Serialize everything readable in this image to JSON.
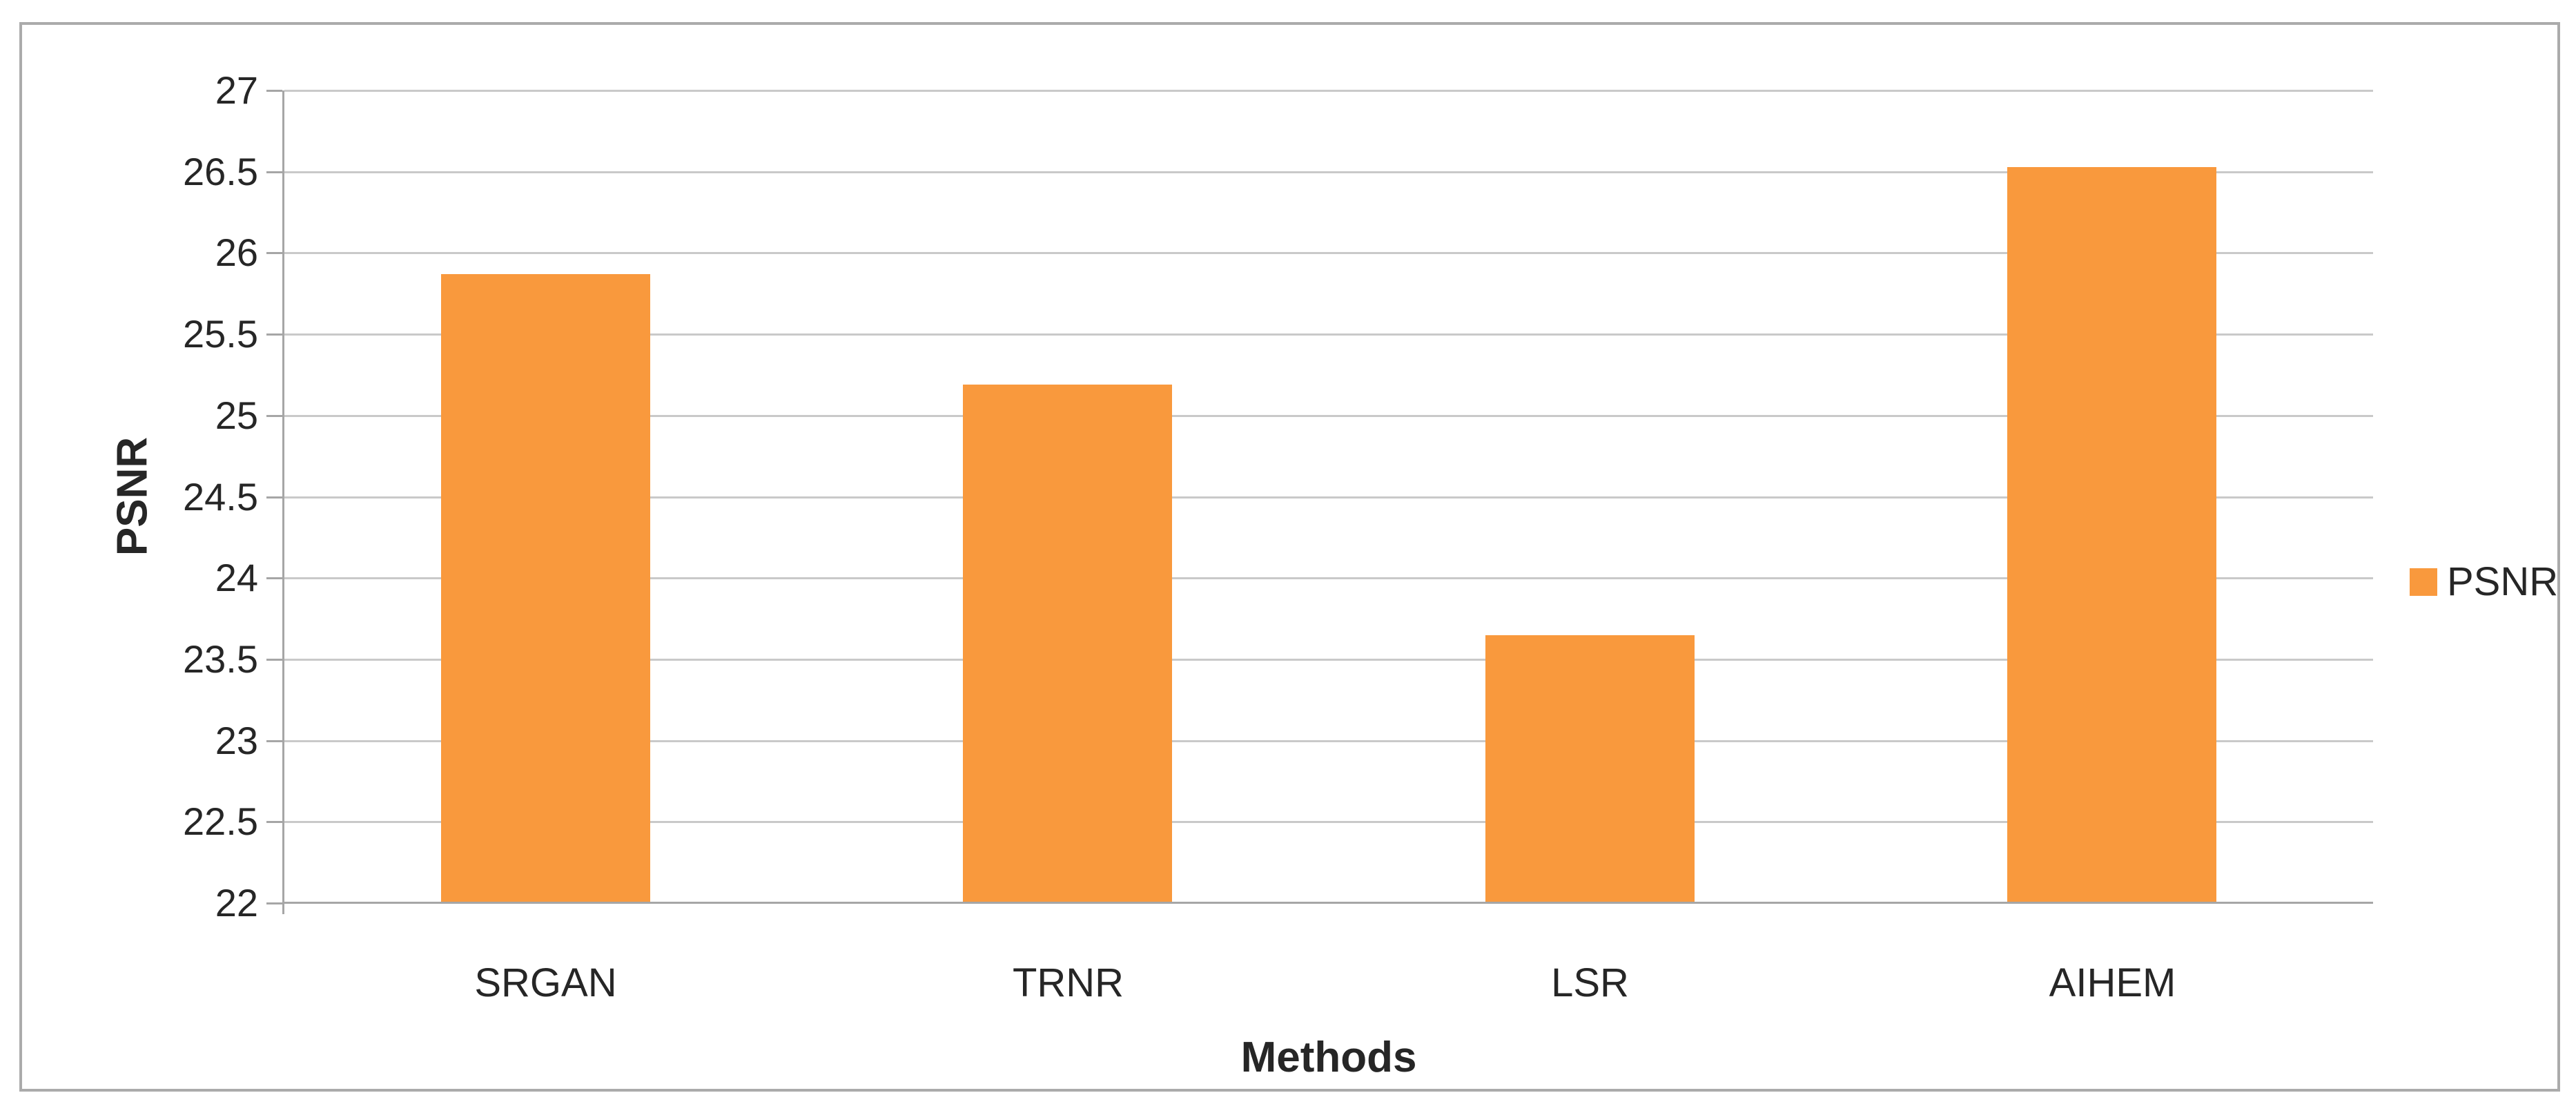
{
  "chart_data": {
    "type": "bar",
    "title": "",
    "categories": [
      "SRGAN",
      "TRNR",
      "LSR",
      "AIHEM"
    ],
    "series": [
      {
        "name": "PSNR",
        "values": [
          25.87,
          25.19,
          23.65,
          26.53
        ]
      }
    ],
    "xlabel": "Methods",
    "ylabel": "PSNR",
    "ylim": [
      22,
      27
    ],
    "ytick_step": 0.5,
    "yticks": [
      27,
      26.5,
      26,
      25.5,
      25,
      24.5,
      24,
      23.5,
      23,
      22.5,
      22
    ],
    "ytick_labels": [
      "27",
      "26.5",
      "26",
      "25.5",
      "25",
      "24.5",
      "24",
      "23.5",
      "23",
      "22.5",
      "22"
    ],
    "grid": true,
    "legend_position": "right-center",
    "legend_label": "PSNR",
    "colors": {
      "bar": "#F9993D",
      "gridline": "#C9C9C9",
      "axis_line": "#A6A6A6",
      "figure_border": "#ABABAB",
      "text": "#262626",
      "background": "#FFFFFF"
    }
  }
}
